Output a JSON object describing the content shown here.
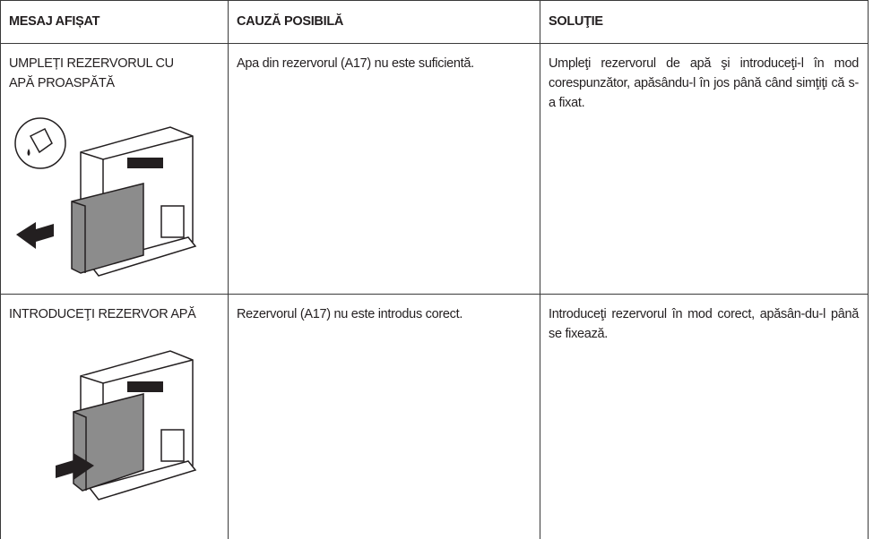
{
  "table": {
    "header": [
      "MESAJ AFIȘAT",
      "CAUZĂ POSIBILĂ",
      "SOLUŢIE"
    ],
    "rows": [
      [
        "UMPLEȚI REZERVORUL CU APĂ PROASPĂTĂ",
        "Apa din rezervorul (A17)  nu este suficientă.",
        "Umpleţi rezervorul de apă şi introduceţi-l în mod corespunzător, apăsându-l în jos până când simţiţi că s-a fixat."
      ],
      [
        "INTRODUCEŢI REZERVOR APĂ",
        "Rezervorul (A17) nu este introdus corect.",
        "Introduceţi rezervorul în mod corect, apăsân-du-l până se fixează."
      ]
    ]
  }
}
